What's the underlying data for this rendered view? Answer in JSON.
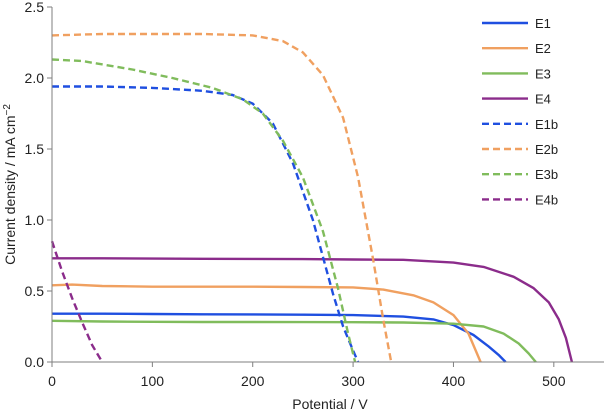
{
  "chart_data": {
    "type": "line",
    "xlabel": "Potential / V",
    "ylabel_main": "Current density / mA cm",
    "ylabel_sup": "−2",
    "xlim": [
      0,
      550
    ],
    "ylim": [
      0,
      2.5
    ],
    "x_ticks": [
      0,
      100,
      200,
      300,
      400,
      500
    ],
    "y_ticks": [
      0,
      0.5,
      1.0,
      1.5,
      2.0,
      2.5
    ],
    "x_tick_labels": [
      "0",
      "100",
      "200",
      "300",
      "400",
      "500"
    ],
    "y_tick_labels": [
      "0.0",
      "0.5",
      "1.0",
      "1.5",
      "2.0",
      "2.5"
    ],
    "grid": false,
    "legend_position": "top-right",
    "series": [
      {
        "name": "E1",
        "color": "#1f4fe0",
        "dash": "solid",
        "x": [
          0,
          50,
          100,
          150,
          200,
          250,
          300,
          350,
          380,
          400,
          420,
          435,
          445,
          452
        ],
        "y": [
          0.34,
          0.34,
          0.338,
          0.336,
          0.335,
          0.333,
          0.33,
          0.32,
          0.3,
          0.26,
          0.19,
          0.11,
          0.05,
          0.0
        ]
      },
      {
        "name": "E2",
        "color": "#f0a060",
        "dash": "solid",
        "x": [
          0,
          20,
          50,
          100,
          150,
          200,
          250,
          300,
          330,
          360,
          380,
          400,
          415,
          427
        ],
        "y": [
          0.54,
          0.545,
          0.535,
          0.53,
          0.53,
          0.53,
          0.528,
          0.525,
          0.51,
          0.47,
          0.42,
          0.33,
          0.2,
          0.0
        ]
      },
      {
        "name": "E3",
        "color": "#80bc5c",
        "dash": "solid",
        "x": [
          0,
          50,
          100,
          150,
          200,
          250,
          300,
          350,
          400,
          430,
          450,
          465,
          475,
          482
        ],
        "y": [
          0.29,
          0.285,
          0.283,
          0.282,
          0.282,
          0.281,
          0.28,
          0.278,
          0.27,
          0.25,
          0.2,
          0.13,
          0.06,
          0.0
        ]
      },
      {
        "name": "E4",
        "color": "#8b2c8b",
        "dash": "solid",
        "x": [
          0,
          50,
          100,
          150,
          200,
          250,
          300,
          350,
          400,
          430,
          460,
          480,
          495,
          505,
          512,
          518
        ],
        "y": [
          0.73,
          0.73,
          0.728,
          0.727,
          0.726,
          0.725,
          0.722,
          0.72,
          0.7,
          0.67,
          0.6,
          0.52,
          0.42,
          0.3,
          0.17,
          0.0
        ]
      },
      {
        "name": "E1b",
        "color": "#1f4fe0",
        "dash": "dashed",
        "x": [
          0,
          20,
          50,
          100,
          150,
          180,
          200,
          220,
          240,
          260,
          280,
          290,
          300,
          305
        ],
        "y": [
          1.94,
          1.94,
          1.94,
          1.93,
          1.91,
          1.88,
          1.82,
          1.68,
          1.4,
          1.0,
          0.48,
          0.25,
          0.08,
          0.0
        ]
      },
      {
        "name": "E2b",
        "color": "#f0a060",
        "dash": "dashed",
        "x": [
          0,
          50,
          100,
          150,
          200,
          230,
          250,
          270,
          290,
          305,
          320,
          330,
          338
        ],
        "y": [
          2.3,
          2.31,
          2.31,
          2.31,
          2.3,
          2.26,
          2.18,
          2.02,
          1.72,
          1.3,
          0.72,
          0.3,
          0.0
        ]
      },
      {
        "name": "E3b",
        "color": "#80bc5c",
        "dash": "dashed",
        "x": [
          0,
          30,
          80,
          120,
          160,
          190,
          210,
          230,
          250,
          270,
          285,
          295,
          302
        ],
        "y": [
          2.13,
          2.12,
          2.06,
          2.0,
          1.93,
          1.85,
          1.75,
          1.56,
          1.3,
          0.92,
          0.52,
          0.2,
          0.0
        ]
      },
      {
        "name": "E4b",
        "color": "#8b2c8b",
        "dash": "dashed",
        "x": [
          0,
          10,
          20,
          30,
          40,
          50
        ],
        "y": [
          0.85,
          0.64,
          0.45,
          0.28,
          0.12,
          0.0
        ]
      }
    ]
  }
}
